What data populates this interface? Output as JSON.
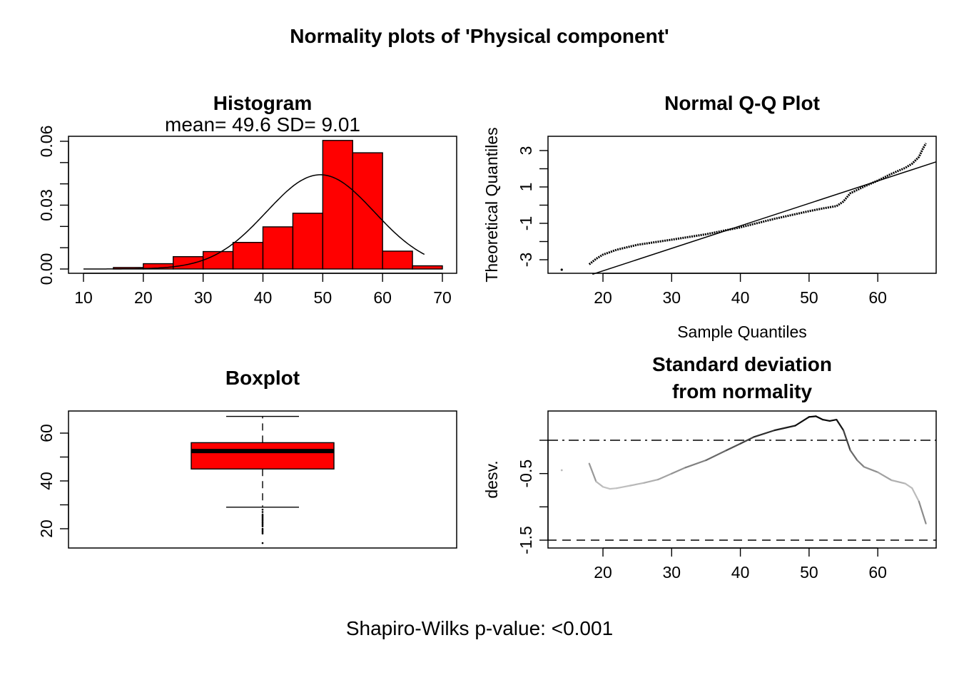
{
  "main_title": "Normality plots of 'Physical component'",
  "footer": "Shapiro-Wilks p-value: <0.001",
  "colors": {
    "bar_fill": "#ff0000",
    "stroke": "#000000"
  },
  "chart_data": [
    {
      "type": "bar",
      "title": "Histogram",
      "subtitle": "mean= 49.6  SD= 9.01",
      "bin_edges": [
        15,
        20,
        25,
        30,
        35,
        40,
        45,
        50,
        55,
        60,
        65,
        70
      ],
      "values": [
        0.0007,
        0.0025,
        0.0058,
        0.0082,
        0.0125,
        0.0198,
        0.0262,
        0.0604,
        0.0546,
        0.0084,
        0.0015
      ],
      "density_curve": {
        "mean": 49.6,
        "sd": 9.01,
        "x_range": [
          10,
          67
        ]
      },
      "xlim": [
        10,
        70
      ],
      "ylim": [
        0,
        0.06
      ],
      "xticks": [
        "10",
        "20",
        "30",
        "40",
        "50",
        "60",
        "70"
      ],
      "yticks": [
        "0.00",
        "0.03",
        "0.06"
      ]
    },
    {
      "type": "scatter",
      "title": "Normal Q-Q Plot",
      "xlabel": "Sample Quantiles",
      "ylabel": "Theoretical Quantiles",
      "xlim": [
        12,
        68.5
      ],
      "ylim": [
        -3.8,
        3.5
      ],
      "xticks": [
        "20",
        "30",
        "40",
        "50",
        "60"
      ],
      "yticks": [
        "-3",
        "-1",
        "1",
        "3"
      ],
      "curve": [
        [
          18,
          -3.25
        ],
        [
          19,
          -2.95
        ],
        [
          20,
          -2.72
        ],
        [
          22,
          -2.45
        ],
        [
          25,
          -2.18
        ],
        [
          30,
          -1.9
        ],
        [
          35,
          -1.6
        ],
        [
          40,
          -1.22
        ],
        [
          45,
          -0.75
        ],
        [
          50,
          -0.33
        ],
        [
          52,
          -0.18
        ],
        [
          54,
          -0.05
        ],
        [
          55,
          0.2
        ],
        [
          56,
          0.65
        ],
        [
          58,
          1.02
        ],
        [
          60,
          1.35
        ],
        [
          62,
          1.72
        ],
        [
          64,
          2.05
        ],
        [
          65,
          2.28
        ],
        [
          66,
          2.65
        ],
        [
          66.5,
          3.05
        ],
        [
          67,
          3.4
        ]
      ],
      "outlier": [
        14,
        -3.55
      ],
      "reference_line": {
        "x1": 12,
        "y1": -4.6,
        "x2": 68.5,
        "y2": 2.38
      }
    },
    {
      "type": "box",
      "title": "Boxplot",
      "ylim": [
        12,
        70
      ],
      "yticks": [
        "20",
        "40",
        "60"
      ],
      "box": {
        "q1": 45,
        "median": 52.5,
        "q3": 56,
        "lower_whisker": 29,
        "upper_whisker": 67
      },
      "outliers": [
        28,
        27,
        26,
        25.5,
        25,
        24.5,
        24,
        23.5,
        23,
        22.5,
        22,
        21.5,
        21,
        20,
        19.5,
        19,
        18.5,
        18,
        14
      ]
    },
    {
      "type": "line",
      "title": "Standard deviation\nfrom normality",
      "title_lines": [
        "Standard deviation",
        "from normality"
      ],
      "ylabel": "desv.",
      "xlim": [
        12,
        68.5
      ],
      "ylim": [
        -1.6,
        0.4
      ],
      "xticks": [
        "20",
        "30",
        "40",
        "50",
        "60"
      ],
      "yticks": [
        "-1.5",
        "-0.5"
      ],
      "hlines": [
        {
          "y": 0,
          "style": "dashdot"
        },
        {
          "y": -1.5,
          "style": "dashed"
        }
      ],
      "curve": [
        [
          18,
          -0.35
        ],
        [
          19,
          -0.62
        ],
        [
          20,
          -0.7
        ],
        [
          21,
          -0.73
        ],
        [
          22,
          -0.72
        ],
        [
          24,
          -0.68
        ],
        [
          26,
          -0.64
        ],
        [
          28,
          -0.59
        ],
        [
          30,
          -0.5
        ],
        [
          32,
          -0.41
        ],
        [
          35,
          -0.3
        ],
        [
          38,
          -0.15
        ],
        [
          40,
          -0.05
        ],
        [
          42,
          0.05
        ],
        [
          45,
          0.15
        ],
        [
          48,
          0.22
        ],
        [
          50,
          0.35
        ],
        [
          51,
          0.36
        ],
        [
          52,
          0.31
        ],
        [
          53,
          0.29
        ],
        [
          54,
          0.31
        ],
        [
          55,
          0.15
        ],
        [
          56,
          -0.15
        ],
        [
          57,
          -0.3
        ],
        [
          58,
          -0.4
        ],
        [
          60,
          -0.48
        ],
        [
          62,
          -0.6
        ],
        [
          64,
          -0.65
        ],
        [
          65,
          -0.72
        ],
        [
          66,
          -0.92
        ],
        [
          67,
          -1.25
        ]
      ],
      "outlier": [
        14,
        -0.45
      ]
    }
  ]
}
